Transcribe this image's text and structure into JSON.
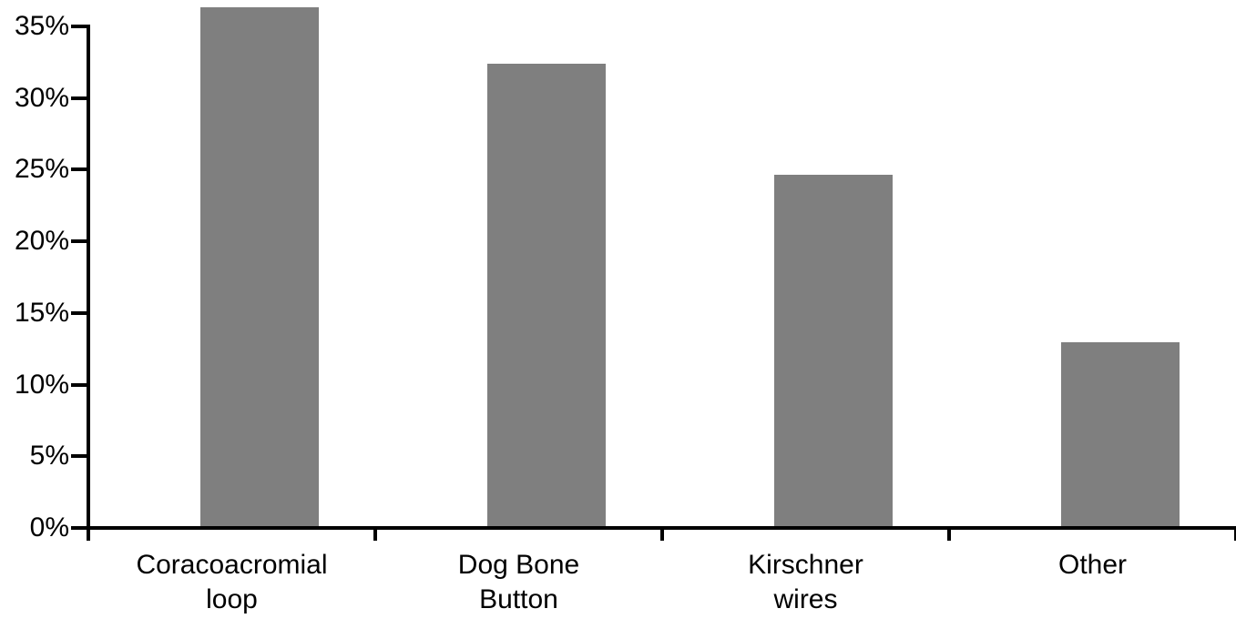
{
  "chart_data": {
    "type": "bar",
    "title": "",
    "xlabel": "",
    "ylabel": "",
    "categories": [
      "Coracoacromial loop",
      "Dog Bone Button",
      "Kirschner wires",
      "Other"
    ],
    "category_lines": [
      [
        "Coracoacromial",
        "loop"
      ],
      [
        "Dog Bone",
        "Button"
      ],
      [
        "Kirschner",
        "wires"
      ],
      [
        "Other"
      ]
    ],
    "values": [
      36.2,
      32.3,
      24.5,
      12.8
    ],
    "yticks": [
      0,
      5,
      10,
      15,
      20,
      25,
      30,
      35
    ],
    "ytick_labels": [
      "0%",
      "5%",
      "10%",
      "15%",
      "20%",
      "25%",
      "30%",
      "35%"
    ],
    "ylim": [
      0,
      37
    ],
    "grid": "off",
    "legend": "none",
    "bar_color": "#7f7f7f",
    "axis_color": "#000000",
    "text_color": "#000000",
    "background_color": "#ffffff"
  }
}
